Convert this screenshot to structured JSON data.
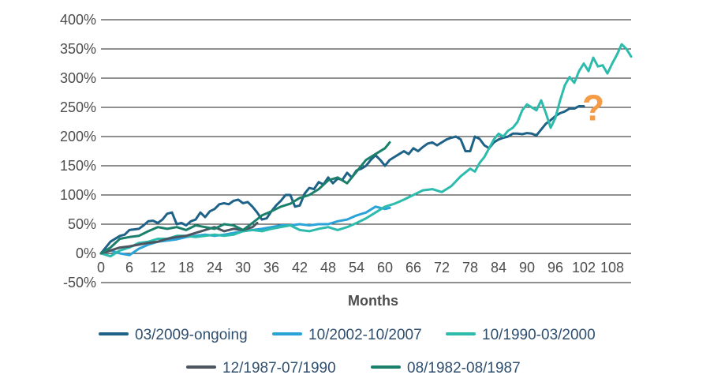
{
  "chart_data": {
    "type": "line",
    "title": "",
    "xlabel": "Months",
    "ylabel": "",
    "xlim": [
      0,
      112
    ],
    "ylim": [
      -50,
      400
    ],
    "x_ticks": [
      0,
      6,
      12,
      18,
      24,
      30,
      36,
      42,
      48,
      54,
      60,
      66,
      72,
      78,
      84,
      90,
      96,
      102,
      108
    ],
    "y_ticks": [
      -50,
      0,
      50,
      100,
      150,
      200,
      250,
      300,
      350,
      400
    ],
    "y_tick_labels": [
      "-50%",
      "0%",
      "50%",
      "100%",
      "150%",
      "200%",
      "250%",
      "300%",
      "350%",
      "400%"
    ],
    "grid": "horizontal",
    "legend_position": "bottom",
    "annotation": {
      "text": "?",
      "x": 104,
      "y": 255,
      "color": "#f59a45"
    },
    "series": [
      {
        "name": "03/2009-ongoing",
        "color": "#1f6288",
        "points": [
          [
            0,
            0
          ],
          [
            2,
            20
          ],
          [
            4,
            30
          ],
          [
            5,
            32
          ],
          [
            6,
            40
          ],
          [
            8,
            42
          ],
          [
            9,
            48
          ],
          [
            10,
            55
          ],
          [
            11,
            56
          ],
          [
            12,
            52
          ],
          [
            13,
            58
          ],
          [
            14,
            68
          ],
          [
            15,
            70
          ],
          [
            16,
            50
          ],
          [
            17,
            52
          ],
          [
            18,
            48
          ],
          [
            19,
            55
          ],
          [
            20,
            58
          ],
          [
            21,
            70
          ],
          [
            22,
            62
          ],
          [
            23,
            72
          ],
          [
            24,
            76
          ],
          [
            25,
            84
          ],
          [
            26,
            86
          ],
          [
            27,
            84
          ],
          [
            28,
            90
          ],
          [
            29,
            92
          ],
          [
            30,
            86
          ],
          [
            31,
            88
          ],
          [
            32,
            80
          ],
          [
            33,
            70
          ],
          [
            34,
            58
          ],
          [
            35,
            60
          ],
          [
            36,
            72
          ],
          [
            37,
            82
          ],
          [
            38,
            90
          ],
          [
            39,
            100
          ],
          [
            40,
            100
          ],
          [
            41,
            80
          ],
          [
            42,
            82
          ],
          [
            43,
            102
          ],
          [
            44,
            112
          ],
          [
            45,
            110
          ],
          [
            46,
            122
          ],
          [
            47,
            118
          ],
          [
            48,
            130
          ],
          [
            49,
            120
          ],
          [
            50,
            128
          ],
          [
            51,
            126
          ],
          [
            52,
            138
          ],
          [
            53,
            130
          ],
          [
            54,
            142
          ],
          [
            55,
            145
          ],
          [
            56,
            150
          ],
          [
            57,
            160
          ],
          [
            58,
            168
          ],
          [
            59,
            160
          ],
          [
            60,
            150
          ],
          [
            61,
            160
          ],
          [
            62,
            165
          ],
          [
            63,
            170
          ],
          [
            64,
            175
          ],
          [
            65,
            170
          ],
          [
            66,
            180
          ],
          [
            67,
            175
          ],
          [
            68,
            182
          ],
          [
            69,
            188
          ],
          [
            70,
            190
          ],
          [
            71,
            185
          ],
          [
            72,
            190
          ],
          [
            73,
            195
          ],
          [
            74,
            198
          ],
          [
            75,
            200
          ],
          [
            76,
            195
          ],
          [
            77,
            175
          ],
          [
            78,
            175
          ],
          [
            79,
            200
          ],
          [
            80,
            196
          ],
          [
            81,
            185
          ],
          [
            82,
            180
          ],
          [
            83,
            190
          ],
          [
            84,
            195
          ],
          [
            85,
            198
          ],
          [
            86,
            200
          ],
          [
            87,
            205
          ],
          [
            88,
            205
          ],
          [
            89,
            204
          ],
          [
            90,
            206
          ],
          [
            91,
            205
          ],
          [
            92,
            202
          ],
          [
            93,
            212
          ],
          [
            94,
            222
          ],
          [
            95,
            228
          ],
          [
            96,
            235
          ],
          [
            97,
            240
          ],
          [
            98,
            243
          ],
          [
            99,
            248
          ],
          [
            100,
            248
          ],
          [
            101,
            252
          ],
          [
            102,
            252
          ]
        ]
      },
      {
        "name": "10/2002-10/2007",
        "color": "#2aa3d8",
        "points": [
          [
            0,
            0
          ],
          [
            2,
            5
          ],
          [
            4,
            0
          ],
          [
            6,
            -3
          ],
          [
            8,
            8
          ],
          [
            10,
            15
          ],
          [
            12,
            20
          ],
          [
            14,
            22
          ],
          [
            16,
            24
          ],
          [
            18,
            28
          ],
          [
            20,
            30
          ],
          [
            22,
            32
          ],
          [
            24,
            30
          ],
          [
            26,
            32
          ],
          [
            28,
            35
          ],
          [
            30,
            38
          ],
          [
            32,
            40
          ],
          [
            34,
            42
          ],
          [
            36,
            45
          ],
          [
            38,
            48
          ],
          [
            40,
            48
          ],
          [
            42,
            50
          ],
          [
            44,
            48
          ],
          [
            46,
            50
          ],
          [
            48,
            50
          ],
          [
            50,
            55
          ],
          [
            52,
            58
          ],
          [
            54,
            65
          ],
          [
            56,
            70
          ],
          [
            58,
            80
          ],
          [
            60,
            76
          ],
          [
            61,
            78
          ]
        ]
      },
      {
        "name": "10/1990-03/2000",
        "color": "#2dbbad",
        "points": [
          [
            0,
            0
          ],
          [
            2,
            -5
          ],
          [
            4,
            5
          ],
          [
            6,
            10
          ],
          [
            8,
            18
          ],
          [
            10,
            20
          ],
          [
            12,
            25
          ],
          [
            14,
            25
          ],
          [
            16,
            30
          ],
          [
            18,
            30
          ],
          [
            20,
            28
          ],
          [
            22,
            30
          ],
          [
            24,
            32
          ],
          [
            26,
            30
          ],
          [
            28,
            32
          ],
          [
            30,
            38
          ],
          [
            32,
            40
          ],
          [
            34,
            38
          ],
          [
            36,
            42
          ],
          [
            38,
            45
          ],
          [
            40,
            48
          ],
          [
            42,
            40
          ],
          [
            44,
            38
          ],
          [
            46,
            42
          ],
          [
            48,
            45
          ],
          [
            50,
            40
          ],
          [
            52,
            45
          ],
          [
            54,
            52
          ],
          [
            56,
            60
          ],
          [
            58,
            70
          ],
          [
            60,
            80
          ],
          [
            62,
            85
          ],
          [
            64,
            92
          ],
          [
            66,
            100
          ],
          [
            68,
            108
          ],
          [
            70,
            110
          ],
          [
            72,
            105
          ],
          [
            74,
            115
          ],
          [
            76,
            132
          ],
          [
            78,
            145
          ],
          [
            79,
            140
          ],
          [
            80,
            155
          ],
          [
            81,
            165
          ],
          [
            82,
            180
          ],
          [
            83,
            195
          ],
          [
            84,
            205
          ],
          [
            85,
            200
          ],
          [
            86,
            210
          ],
          [
            87,
            215
          ],
          [
            88,
            225
          ],
          [
            89,
            245
          ],
          [
            90,
            255
          ],
          [
            91,
            250
          ],
          [
            92,
            245
          ],
          [
            93,
            262
          ],
          [
            94,
            240
          ],
          [
            95,
            215
          ],
          [
            96,
            232
          ],
          [
            97,
            262
          ],
          [
            98,
            288
          ],
          [
            99,
            302
          ],
          [
            100,
            292
          ],
          [
            101,
            312
          ],
          [
            102,
            325
          ],
          [
            103,
            312
          ],
          [
            104,
            335
          ],
          [
            105,
            320
          ],
          [
            106,
            322
          ],
          [
            107,
            308
          ],
          [
            108,
            325
          ],
          [
            109,
            340
          ],
          [
            110,
            358
          ],
          [
            111,
            350
          ],
          [
            112,
            337
          ]
        ]
      },
      {
        "name": "12/1987-07/1990",
        "color": "#4c5560",
        "points": [
          [
            0,
            0
          ],
          [
            2,
            5
          ],
          [
            4,
            10
          ],
          [
            6,
            12
          ],
          [
            8,
            15
          ],
          [
            10,
            18
          ],
          [
            12,
            20
          ],
          [
            14,
            25
          ],
          [
            16,
            28
          ],
          [
            18,
            30
          ],
          [
            20,
            35
          ],
          [
            22,
            40
          ],
          [
            24,
            45
          ],
          [
            26,
            38
          ],
          [
            28,
            42
          ],
          [
            30,
            40
          ],
          [
            32,
            45
          ],
          [
            33,
            52
          ]
        ]
      },
      {
        "name": "08/1982-08/1987",
        "color": "#1a7f6b",
        "points": [
          [
            0,
            0
          ],
          [
            2,
            10
          ],
          [
            4,
            25
          ],
          [
            6,
            28
          ],
          [
            8,
            30
          ],
          [
            10,
            38
          ],
          [
            12,
            45
          ],
          [
            14,
            42
          ],
          [
            16,
            45
          ],
          [
            18,
            40
          ],
          [
            20,
            48
          ],
          [
            22,
            45
          ],
          [
            24,
            42
          ],
          [
            26,
            50
          ],
          [
            28,
            48
          ],
          [
            30,
            40
          ],
          [
            32,
            52
          ],
          [
            34,
            65
          ],
          [
            36,
            72
          ],
          [
            38,
            80
          ],
          [
            40,
            85
          ],
          [
            42,
            95
          ],
          [
            44,
            100
          ],
          [
            46,
            110
          ],
          [
            48,
            125
          ],
          [
            50,
            130
          ],
          [
            52,
            120
          ],
          [
            54,
            140
          ],
          [
            56,
            160
          ],
          [
            58,
            170
          ],
          [
            60,
            180
          ],
          [
            61,
            190
          ]
        ]
      }
    ]
  }
}
